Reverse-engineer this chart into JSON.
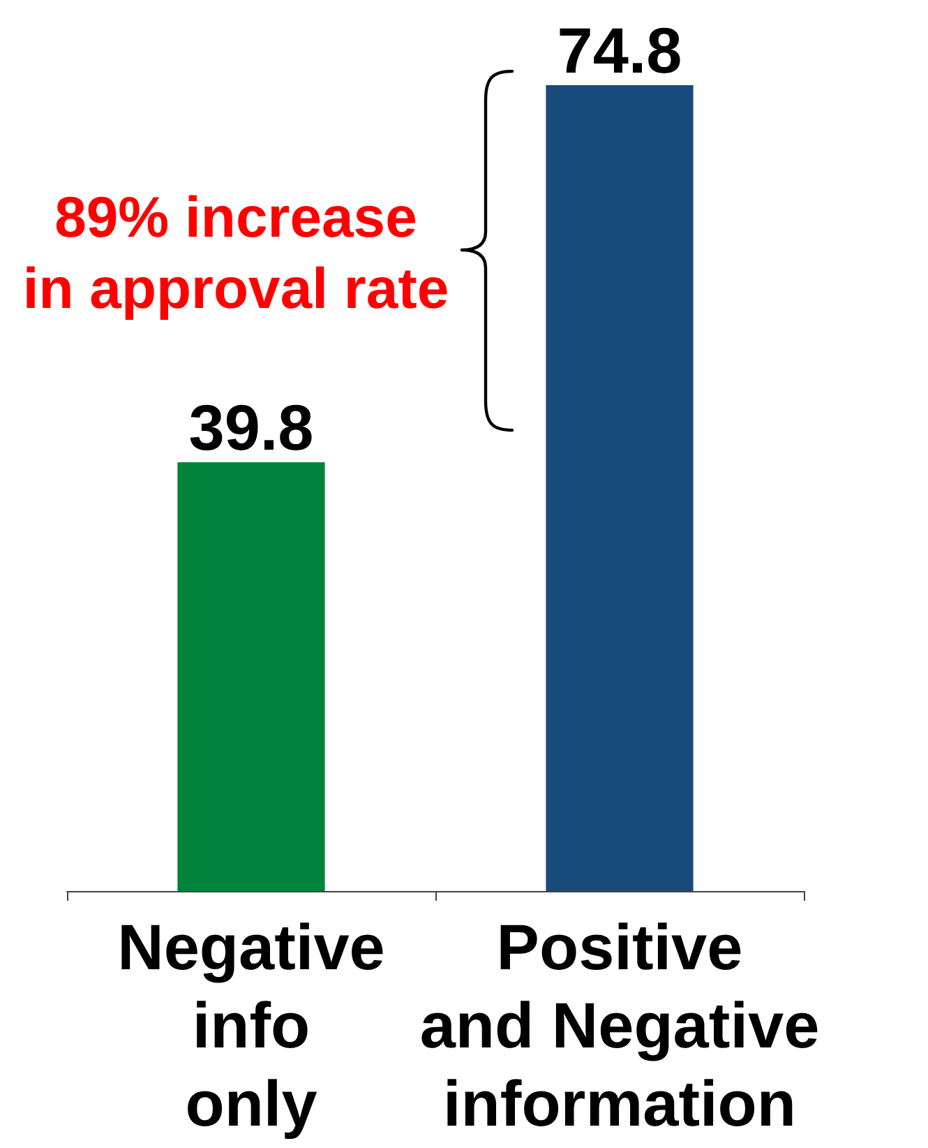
{
  "chart_data": {
    "type": "bar",
    "categories": [
      "Negative\ninfo\nonly",
      "Positive\nand Negative\ninformation"
    ],
    "values": [
      39.8,
      74.8
    ],
    "colors": [
      "#00843d",
      "#184a7c"
    ],
    "data_labels": true,
    "annotations": [
      "89% increase\nin approval rate"
    ]
  }
}
